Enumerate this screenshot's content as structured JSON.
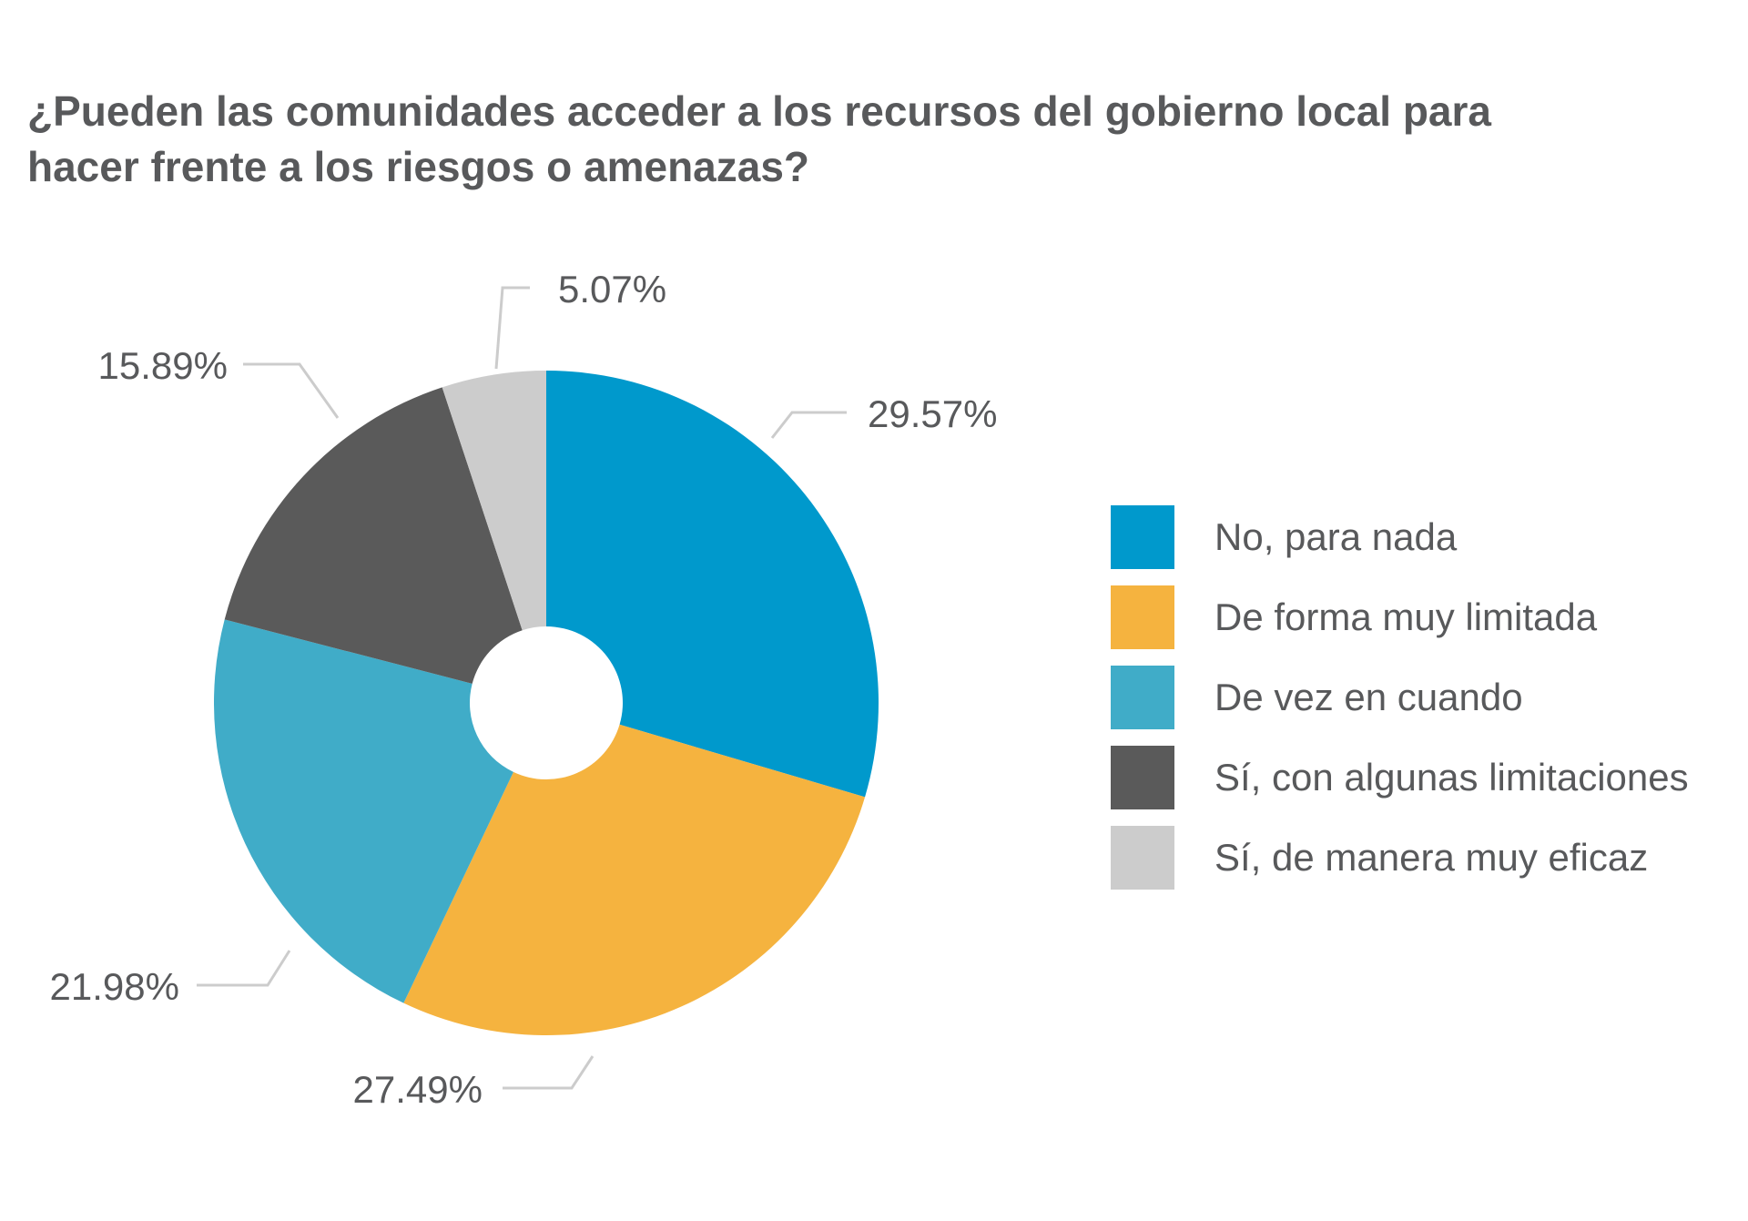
{
  "chart_data": {
    "type": "pie",
    "title_lines": [
      "¿Pueden las comunidades acceder a los recursos del gobierno local para",
      "hacer frente a los riesgos o amenazas?"
    ],
    "categories": [
      "No, para nada",
      "De forma muy limitada",
      "De vez en cuando",
      "Sí, con algunas limitaciones",
      "Sí, de manera muy eficaz"
    ],
    "values": [
      29.57,
      27.49,
      21.98,
      15.89,
      5.07
    ],
    "value_labels": [
      "29.57%",
      "27.49%",
      "21.98%",
      "15.89%",
      "5.07%"
    ],
    "colors": [
      "#0099cc",
      "#f5b33f",
      "#40acc8",
      "#5a5a5a",
      "#cccccc"
    ],
    "donut": true,
    "legend_position": "right"
  }
}
